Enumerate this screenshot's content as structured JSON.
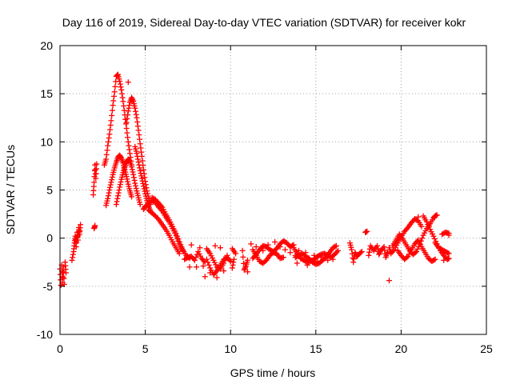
{
  "chart_data": {
    "type": "scatter",
    "title": "Day 116 of 2019, Sidereal Day-to-day VTEC variation (SDTVAR) for receiver kokr",
    "xlabel": "GPS time / hours",
    "ylabel": "SDTVAR / TECUs",
    "xlim": [
      0,
      25
    ],
    "ylim": [
      -10,
      20
    ],
    "xticks": [
      0,
      5,
      10,
      15,
      20,
      25
    ],
    "yticks": [
      -10,
      -5,
      0,
      5,
      10,
      15,
      20
    ],
    "grid": true,
    "marker": "plus",
    "color": "#ff0000",
    "series": [
      {
        "name": "SDTVAR",
        "points": [
          [
            0.0,
            -3.2
          ],
          [
            0.05,
            -4.9
          ],
          [
            0.1,
            -2.8
          ],
          [
            0.15,
            -4.6
          ],
          [
            0.2,
            -3.0
          ],
          [
            0.25,
            -4.8
          ],
          [
            0.3,
            -2.5
          ],
          [
            0.35,
            -3.6
          ],
          [
            0.7,
            -2.3
          ],
          [
            0.8,
            -1.4
          ],
          [
            0.85,
            -0.5
          ],
          [
            0.9,
            0.2
          ],
          [
            0.95,
            -0.9
          ],
          [
            1.0,
            0.6
          ],
          [
            1.05,
            -0.2
          ],
          [
            1.1,
            1.1
          ],
          [
            1.15,
            0.4
          ],
          [
            1.2,
            1.4
          ],
          [
            1.95,
            4.5
          ],
          [
            2.0,
            5.8
          ],
          [
            2.05,
            7.6
          ],
          [
            2.1,
            6.2
          ],
          [
            2.15,
            7.7
          ],
          [
            2.0,
            1.0
          ],
          [
            2.05,
            1.3
          ],
          [
            2.6,
            7.6
          ],
          [
            2.7,
            8.2
          ],
          [
            2.8,
            9.6
          ],
          [
            2.9,
            10.8
          ],
          [
            3.0,
            12.2
          ],
          [
            3.1,
            13.8
          ],
          [
            3.2,
            15.2
          ],
          [
            3.3,
            16.8
          ],
          [
            3.4,
            17.0
          ],
          [
            3.5,
            16.3
          ],
          [
            3.6,
            15.4
          ],
          [
            3.7,
            14.2
          ],
          [
            3.8,
            12.8
          ],
          [
            3.9,
            11.4
          ],
          [
            4.0,
            10.0
          ],
          [
            4.1,
            8.8
          ],
          [
            4.2,
            7.6
          ],
          [
            2.7,
            3.4
          ],
          [
            2.8,
            4.1
          ],
          [
            2.9,
            5.0
          ],
          [
            3.0,
            5.8
          ],
          [
            3.1,
            6.6
          ],
          [
            3.2,
            7.3
          ],
          [
            3.3,
            7.9
          ],
          [
            3.4,
            8.4
          ],
          [
            3.5,
            8.6
          ],
          [
            3.6,
            8.3
          ],
          [
            3.7,
            7.8
          ],
          [
            3.8,
            7.1
          ],
          [
            3.9,
            6.4
          ],
          [
            4.0,
            5.6
          ],
          [
            4.1,
            4.9
          ],
          [
            4.2,
            4.3
          ],
          [
            3.3,
            3.5
          ],
          [
            3.4,
            4.4
          ],
          [
            3.5,
            5.3
          ],
          [
            3.6,
            6.1
          ],
          [
            3.7,
            6.8
          ],
          [
            3.8,
            7.4
          ],
          [
            3.9,
            7.9
          ],
          [
            4.0,
            8.2
          ],
          [
            4.1,
            8.0
          ],
          [
            4.2,
            7.4
          ],
          [
            4.3,
            6.6
          ],
          [
            4.4,
            5.7
          ],
          [
            4.5,
            4.9
          ],
          [
            4.6,
            4.2
          ],
          [
            4.7,
            3.5
          ],
          [
            3.9,
            12.0
          ],
          [
            4.0,
            13.2
          ],
          [
            4.1,
            14.1
          ],
          [
            4.2,
            14.6
          ],
          [
            4.3,
            14.2
          ],
          [
            4.4,
            13.5
          ],
          [
            4.5,
            12.5
          ],
          [
            4.6,
            11.2
          ],
          [
            4.7,
            9.8
          ],
          [
            4.8,
            8.5
          ],
          [
            4.9,
            7.1
          ],
          [
            5.0,
            5.9
          ],
          [
            5.1,
            4.9
          ],
          [
            5.2,
            4.1
          ],
          [
            5.3,
            3.5
          ],
          [
            4.0,
            16.2
          ],
          [
            4.4,
            9.5
          ],
          [
            4.5,
            8.8
          ],
          [
            4.6,
            7.9
          ],
          [
            4.7,
            7.0
          ],
          [
            4.8,
            6.2
          ],
          [
            4.9,
            5.4
          ],
          [
            5.0,
            4.6
          ],
          [
            5.1,
            3.9
          ],
          [
            5.2,
            3.3
          ],
          [
            5.3,
            2.8
          ],
          [
            4.9,
            3.0
          ],
          [
            5.0,
            3.3
          ],
          [
            5.2,
            3.6
          ],
          [
            5.4,
            3.9
          ],
          [
            5.6,
            3.7
          ],
          [
            5.8,
            3.2
          ],
          [
            6.0,
            2.8
          ],
          [
            6.2,
            2.2
          ],
          [
            6.4,
            1.7
          ],
          [
            6.6,
            1.0
          ],
          [
            6.8,
            0.3
          ],
          [
            7.0,
            -0.6
          ],
          [
            7.2,
            -1.3
          ],
          [
            5.4,
            4.2
          ],
          [
            5.6,
            4.0
          ],
          [
            5.8,
            3.6
          ],
          [
            6.0,
            3.2
          ],
          [
            6.2,
            2.5
          ],
          [
            6.4,
            1.9
          ],
          [
            6.6,
            1.2
          ],
          [
            6.8,
            0.5
          ],
          [
            7.0,
            -0.4
          ],
          [
            7.2,
            -1.2
          ],
          [
            7.4,
            -1.8
          ],
          [
            7.6,
            -2.1
          ],
          [
            5.2,
            2.9
          ],
          [
            5.4,
            2.6
          ],
          [
            5.6,
            2.3
          ],
          [
            5.8,
            1.9
          ],
          [
            6.0,
            1.4
          ],
          [
            6.2,
            0.9
          ],
          [
            6.4,
            0.3
          ],
          [
            6.6,
            -0.4
          ],
          [
            6.8,
            -1.0
          ],
          [
            7.0,
            -1.6
          ],
          [
            7.3,
            -2.2
          ],
          [
            7.5,
            -2.0
          ],
          [
            7.7,
            -1.9
          ],
          [
            7.9,
            -2.3
          ],
          [
            8.1,
            -1.4
          ],
          [
            8.3,
            -2.1
          ],
          [
            8.5,
            -2.5
          ],
          [
            7.6,
            -3.0
          ],
          [
            8.0,
            -3.0
          ],
          [
            8.4,
            -2.9
          ],
          [
            7.7,
            -0.7
          ],
          [
            8.2,
            -1.0
          ],
          [
            8.6,
            -2.2
          ],
          [
            8.8,
            -3.1
          ],
          [
            9.0,
            -3.8
          ],
          [
            9.2,
            -3.4
          ],
          [
            9.4,
            -2.8
          ],
          [
            9.6,
            -2.2
          ],
          [
            9.8,
            -2.0
          ],
          [
            10.0,
            -2.4
          ],
          [
            8.5,
            -4.0
          ],
          [
            8.8,
            -3.6
          ],
          [
            9.2,
            -4.1
          ],
          [
            9.6,
            -3.4
          ],
          [
            8.6,
            -1.1
          ],
          [
            8.8,
            -1.6
          ],
          [
            9.0,
            -2.3
          ],
          [
            9.2,
            -3.0
          ],
          [
            9.4,
            -3.2
          ],
          [
            9.6,
            -2.6
          ],
          [
            9.8,
            -1.8
          ],
          [
            10.1,
            -1.1
          ],
          [
            10.3,
            -1.6
          ],
          [
            10.1,
            -3.1
          ],
          [
            10.2,
            -2.2
          ],
          [
            9.1,
            -0.8
          ],
          [
            9.4,
            -1.0
          ],
          [
            10.7,
            -1.3
          ],
          [
            10.8,
            -3.3
          ],
          [
            10.9,
            -2.9
          ],
          [
            11.0,
            -2.3
          ],
          [
            11.0,
            -3.5
          ],
          [
            11.3,
            -1.2
          ],
          [
            11.5,
            -1.8
          ],
          [
            11.7,
            -2.4
          ],
          [
            11.9,
            -2.6
          ],
          [
            12.1,
            -2.3
          ],
          [
            12.3,
            -1.8
          ],
          [
            12.5,
            -1.5
          ],
          [
            12.7,
            -1.6
          ],
          [
            12.9,
            -2.1
          ],
          [
            13.1,
            -2.0
          ],
          [
            11.3,
            -2.1
          ],
          [
            11.5,
            -1.7
          ],
          [
            11.7,
            -1.2
          ],
          [
            11.9,
            -0.8
          ],
          [
            12.1,
            -0.9
          ],
          [
            12.3,
            -1.2
          ],
          [
            12.5,
            -1.4
          ],
          [
            12.7,
            -1.1
          ],
          [
            12.9,
            -0.6
          ],
          [
            13.1,
            -0.3
          ],
          [
            13.3,
            -0.5
          ],
          [
            13.5,
            -0.9
          ],
          [
            13.7,
            -0.7
          ],
          [
            11.2,
            -0.6
          ],
          [
            11.5,
            -0.9
          ],
          [
            11.9,
            -1.3
          ],
          [
            12.2,
            -0.7
          ],
          [
            12.6,
            -0.4
          ],
          [
            12.9,
            -0.9
          ],
          [
            13.2,
            -1.2
          ],
          [
            13.5,
            -1.5
          ],
          [
            13.8,
            -1.8
          ],
          [
            13.7,
            -1.0
          ],
          [
            13.9,
            -1.6
          ],
          [
            14.1,
            -2.1
          ],
          [
            14.3,
            -2.3
          ],
          [
            14.5,
            -2.5
          ],
          [
            14.7,
            -2.4
          ],
          [
            14.9,
            -2.2
          ],
          [
            15.1,
            -1.9
          ],
          [
            15.3,
            -1.7
          ],
          [
            15.5,
            -1.6
          ],
          [
            15.7,
            -1.8
          ],
          [
            15.9,
            -2.0
          ],
          [
            16.1,
            -1.7
          ],
          [
            16.3,
            -1.3
          ],
          [
            13.8,
            -2.0
          ],
          [
            14.0,
            -1.8
          ],
          [
            14.2,
            -1.6
          ],
          [
            14.4,
            -1.9
          ],
          [
            14.6,
            -2.1
          ],
          [
            14.8,
            -2.5
          ],
          [
            15.0,
            -2.7
          ],
          [
            15.2,
            -2.6
          ],
          [
            15.4,
            -2.3
          ],
          [
            15.6,
            -2.0
          ],
          [
            15.8,
            -1.5
          ],
          [
            16.0,
            -1.0
          ],
          [
            16.2,
            -0.8
          ],
          [
            14.0,
            -1.3
          ],
          [
            14.4,
            -1.5
          ],
          [
            14.9,
            -1.8
          ],
          [
            15.3,
            -2.0
          ],
          [
            15.7,
            -2.3
          ],
          [
            16.0,
            -2.2
          ],
          [
            14.5,
            -2.8
          ],
          [
            15.1,
            -2.4
          ],
          [
            13.9,
            -2.6
          ],
          [
            17.0,
            -0.5
          ],
          [
            17.1,
            -1.2
          ],
          [
            17.2,
            -2.5
          ],
          [
            17.3,
            -1.5
          ],
          [
            17.4,
            -1.9
          ],
          [
            17.5,
            -1.7
          ],
          [
            17.7,
            -1.4
          ],
          [
            17.9,
            0.6
          ],
          [
            18.0,
            0.7
          ],
          [
            18.1,
            -1.8
          ],
          [
            18.2,
            -0.8
          ],
          [
            18.4,
            -1.3
          ],
          [
            18.6,
            -0.8
          ],
          [
            18.7,
            -1.7
          ],
          [
            18.8,
            -1.3
          ],
          [
            19.0,
            -0.9
          ],
          [
            19.1,
            -2.0
          ],
          [
            19.2,
            -1.5
          ],
          [
            19.3,
            -4.4
          ],
          [
            19.3,
            -1.0
          ],
          [
            19.4,
            -1.6
          ],
          [
            19.6,
            -1.2
          ],
          [
            19.8,
            -0.5
          ],
          [
            20.0,
            0.1
          ],
          [
            20.2,
            0.7
          ],
          [
            20.4,
            1.1
          ],
          [
            20.6,
            1.6
          ],
          [
            20.8,
            2.0
          ],
          [
            21.0,
            1.8
          ],
          [
            21.2,
            1.2
          ],
          [
            19.5,
            -0.8
          ],
          [
            19.7,
            -0.2
          ],
          [
            19.9,
            0.4
          ],
          [
            20.1,
            -0.1
          ],
          [
            20.3,
            -0.7
          ],
          [
            20.5,
            -1.3
          ],
          [
            20.7,
            -1.7
          ],
          [
            20.9,
            -1.4
          ],
          [
            21.1,
            -0.6
          ],
          [
            21.3,
            0.3
          ],
          [
            21.5,
            1.0
          ],
          [
            21.7,
            1.5
          ],
          [
            21.9,
            2.1
          ],
          [
            22.0,
            2.3
          ],
          [
            22.1,
            2.4
          ],
          [
            19.8,
            -1.3
          ],
          [
            20.0,
            -1.8
          ],
          [
            20.2,
            -2.2
          ],
          [
            20.4,
            -1.9
          ],
          [
            20.6,
            -1.2
          ],
          [
            20.8,
            -0.6
          ],
          [
            21.0,
            -0.2
          ],
          [
            21.2,
            -0.9
          ],
          [
            21.4,
            -1.5
          ],
          [
            21.6,
            -2.1
          ],
          [
            21.8,
            -2.4
          ],
          [
            22.0,
            -2.2
          ],
          [
            21.0,
            2.2
          ],
          [
            21.3,
            2.3
          ],
          [
            21.5,
            1.7
          ],
          [
            21.7,
            0.9
          ],
          [
            21.9,
            0.2
          ],
          [
            22.1,
            -0.6
          ],
          [
            22.3,
            -1.3
          ],
          [
            22.5,
            -1.8
          ],
          [
            22.7,
            -2.2
          ],
          [
            22.8,
            -2.1
          ],
          [
            22.0,
            -0.5
          ],
          [
            22.2,
            -1.0
          ],
          [
            22.4,
            -1.2
          ],
          [
            22.6,
            -1.4
          ],
          [
            22.8,
            -1.6
          ],
          [
            22.4,
            0.4
          ],
          [
            22.6,
            0.6
          ],
          [
            22.8,
            0.5
          ],
          [
            22.5,
            -2.3
          ],
          [
            22.8,
            0.3
          ]
        ]
      }
    ]
  }
}
